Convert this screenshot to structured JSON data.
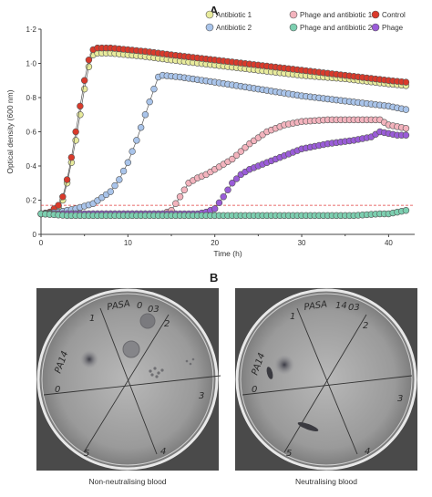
{
  "panels": {
    "a_label": "A",
    "b_label": "B",
    "b_captions": [
      "Non-neutralising blood",
      "Neutralising blood"
    ],
    "plate_markings": {
      "left": [
        "PA14",
        "0",
        "1",
        "PASA",
        "0",
        "03",
        "2",
        "3",
        "4",
        "5"
      ],
      "right": [
        "PA14",
        "0",
        "1",
        "PASA",
        "14",
        "03",
        "2",
        "3",
        "4",
        "5"
      ]
    }
  },
  "chart_data": {
    "type": "scatter",
    "xlabel": "Time (h)",
    "ylabel": "Optical density (600 nm)",
    "xlim": [
      0,
      43
    ],
    "ylim": [
      0,
      1.2
    ],
    "xticks": [
      "0",
      "10",
      "20",
      "30",
      "40"
    ],
    "yticks": [
      "0",
      "0·2",
      "0·4",
      "0·6",
      "0·8",
      "1·0",
      "1·2"
    ],
    "threshold": {
      "y": 0.17,
      "color": "#e03c3c"
    },
    "legend": {
      "placement": "top-right",
      "entries": [
        {
          "label": "Antibiotic 1",
          "color": "#e8eb9c"
        },
        {
          "label": "Phage and antibiotic 1",
          "color": "#f3b3bd"
        },
        {
          "label": "Control",
          "color": "#d93a2b"
        },
        {
          "label": "Antibiotic 2",
          "color": "#a9c4ea"
        },
        {
          "label": "Phage and antibiotic 2",
          "color": "#7ccfb0"
        },
        {
          "label": "Phage",
          "color": "#9a5cd8"
        }
      ]
    },
    "series": [
      {
        "name": "Antibiotic 1",
        "color": "#e8eb9c",
        "x": [
          0,
          1,
          2,
          2.5,
          3,
          3.5,
          4,
          4.5,
          5,
          5.5,
          6,
          6.5,
          7,
          8,
          10,
          12,
          15,
          20,
          25,
          30,
          35,
          40,
          42
        ],
        "y": [
          0.12,
          0.12,
          0.16,
          0.2,
          0.3,
          0.42,
          0.55,
          0.7,
          0.85,
          0.98,
          1.05,
          1.06,
          1.06,
          1.06,
          1.05,
          1.04,
          1.02,
          0.99,
          0.96,
          0.93,
          0.91,
          0.88,
          0.87
        ]
      },
      {
        "name": "Control",
        "color": "#d93a2b",
        "x": [
          0,
          1,
          2,
          2.5,
          3,
          3.5,
          4,
          4.5,
          5,
          5.5,
          6,
          6.5,
          7,
          8,
          10,
          12,
          15,
          20,
          25,
          30,
          35,
          40,
          42
        ],
        "y": [
          0.12,
          0.13,
          0.17,
          0.22,
          0.32,
          0.45,
          0.6,
          0.75,
          0.9,
          1.02,
          1.08,
          1.09,
          1.09,
          1.09,
          1.08,
          1.07,
          1.05,
          1.02,
          0.99,
          0.96,
          0.93,
          0.9,
          0.89
        ]
      },
      {
        "name": "Antibiotic 2",
        "color": "#a9c4ea",
        "x": [
          0,
          2,
          4,
          6,
          8,
          9,
          10,
          11,
          12,
          13,
          13.5,
          14,
          16,
          20,
          25,
          30,
          35,
          40,
          42
        ],
        "y": [
          0.12,
          0.13,
          0.15,
          0.18,
          0.25,
          0.32,
          0.42,
          0.55,
          0.7,
          0.85,
          0.92,
          0.93,
          0.92,
          0.89,
          0.85,
          0.81,
          0.78,
          0.75,
          0.73
        ]
      },
      {
        "name": "Phage and antibiotic 1",
        "color": "#f3b3bd",
        "x": [
          0,
          5,
          10,
          14,
          15,
          16,
          17,
          18,
          19,
          20,
          22,
          24,
          26,
          28,
          30,
          33,
          36,
          39,
          40,
          41,
          42
        ],
        "y": [
          0.12,
          0.12,
          0.12,
          0.12,
          0.14,
          0.22,
          0.3,
          0.33,
          0.35,
          0.38,
          0.44,
          0.53,
          0.6,
          0.64,
          0.66,
          0.67,
          0.67,
          0.67,
          0.64,
          0.63,
          0.62
        ]
      },
      {
        "name": "Phage",
        "color": "#9a5cd8",
        "x": [
          0,
          5,
          10,
          15,
          18,
          19,
          20,
          21,
          22,
          23,
          24,
          26,
          28,
          30,
          33,
          36,
          38,
          39,
          40,
          41,
          42
        ],
        "y": [
          0.12,
          0.12,
          0.12,
          0.12,
          0.12,
          0.13,
          0.15,
          0.22,
          0.3,
          0.35,
          0.38,
          0.42,
          0.46,
          0.5,
          0.53,
          0.55,
          0.57,
          0.6,
          0.59,
          0.58,
          0.58
        ]
      },
      {
        "name": "Phage and antibiotic 2",
        "color": "#7ccfb0",
        "x": [
          0,
          3,
          6,
          9,
          12,
          15,
          18,
          21,
          24,
          27,
          30,
          33,
          36,
          39,
          40,
          41,
          42
        ],
        "y": [
          0.12,
          0.11,
          0.11,
          0.11,
          0.11,
          0.11,
          0.11,
          0.11,
          0.11,
          0.11,
          0.11,
          0.11,
          0.11,
          0.12,
          0.12,
          0.13,
          0.14
        ]
      }
    ]
  }
}
